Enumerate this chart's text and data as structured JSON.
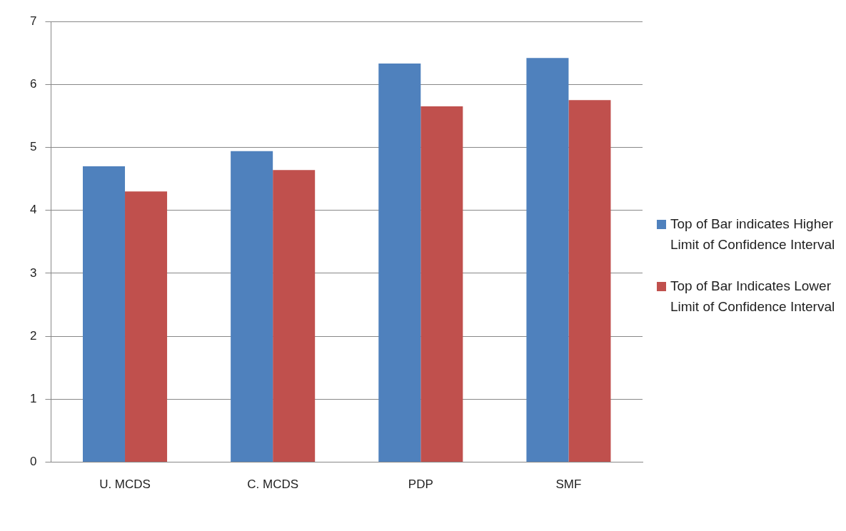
{
  "chart_data": {
    "type": "bar",
    "categories": [
      "U. MCDS",
      "C. MCDS",
      "PDP",
      "SMF"
    ],
    "series": [
      {
        "name": "Top of Bar indicates Higher Limit of Confidence Interval",
        "color": "#4f81bd",
        "values": [
          4.7,
          4.94,
          6.33,
          6.42
        ]
      },
      {
        "name": "Top of Bar Indicates Lower Limit of Confidence Interval",
        "color": "#c0504d",
        "values": [
          4.3,
          4.64,
          5.65,
          5.75
        ]
      }
    ],
    "ylim": [
      0,
      7
    ],
    "yticks": [
      0,
      1,
      2,
      3,
      4,
      5,
      6,
      7
    ],
    "grid": "y",
    "legend": "right"
  }
}
